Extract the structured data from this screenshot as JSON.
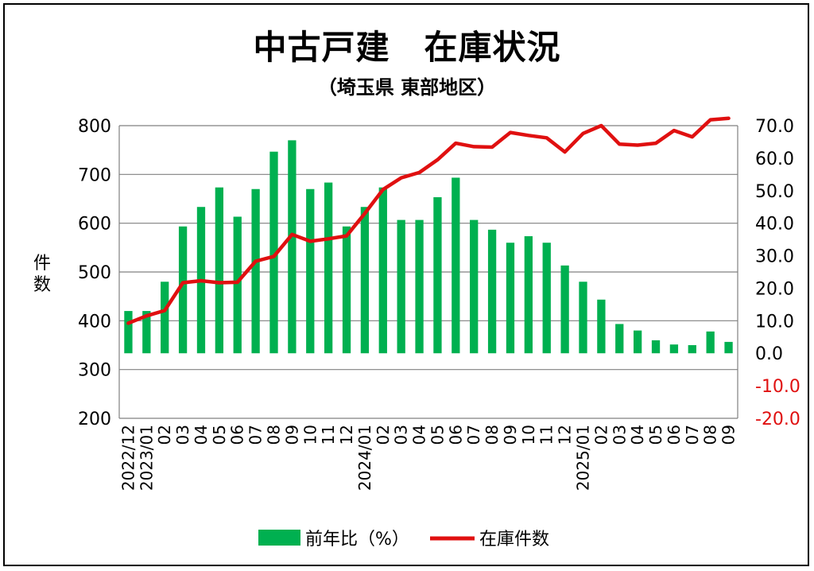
{
  "header": {
    "title": "中古戸建　在庫状況",
    "subtitle": "（埼玉県 東部地区）"
  },
  "axes": {
    "left_label_chars": [
      "件",
      "数"
    ]
  },
  "colors": {
    "bar": "#00b050",
    "line": "#e01010",
    "right_tick_negative": "#e01010",
    "grid": "#808080"
  },
  "chart_data": {
    "type": "bar+line",
    "categories": [
      "2022/12",
      "2023/01",
      "02",
      "03",
      "04",
      "05",
      "06",
      "07",
      "08",
      "09",
      "10",
      "11",
      "12",
      "2024/01",
      "02",
      "03",
      "04",
      "05",
      "06",
      "07",
      "08",
      "09",
      "10",
      "11",
      "12",
      "2025/01",
      "02",
      "03",
      "04",
      "05",
      "06",
      "07",
      "08",
      "09"
    ],
    "y_left": {
      "min": 200,
      "max": 800,
      "ticks": [
        200,
        300,
        400,
        500,
        600,
        700,
        800
      ],
      "label": "件数"
    },
    "y_right": {
      "min": -20,
      "max": 70,
      "ticks": [
        -20,
        -10,
        0,
        10,
        20,
        30,
        40,
        50,
        60,
        70
      ],
      "tick_labels": [
        "-20.0",
        "-10.0",
        "0.0",
        "10.0",
        "20.0",
        "30.0",
        "40.0",
        "50.0",
        "60.0",
        "70.0"
      ]
    },
    "grid": true,
    "legend_position": "bottom",
    "series": [
      {
        "name": "前年比（%）",
        "type": "bar",
        "axis": "right",
        "values": [
          13,
          13,
          22,
          39,
          45,
          51,
          42,
          50.5,
          62,
          65.5,
          50.5,
          52.5,
          39,
          45,
          51,
          41,
          41,
          48,
          54,
          41,
          38,
          34,
          36,
          34,
          27,
          22,
          16.5,
          9,
          7,
          4,
          2.7,
          2.5,
          6.7,
          3.5
        ]
      },
      {
        "name": "在庫件数",
        "type": "line",
        "axis": "left",
        "values": [
          395,
          410,
          421,
          478,
          482,
          478,
          479,
          522,
          532,
          577,
          563,
          568,
          574,
          620,
          669,
          693,
          704,
          730,
          764,
          757,
          756,
          786,
          780,
          775,
          746,
          784,
          800,
          762,
          760,
          764,
          790,
          777,
          812,
          815
        ]
      }
    ]
  }
}
